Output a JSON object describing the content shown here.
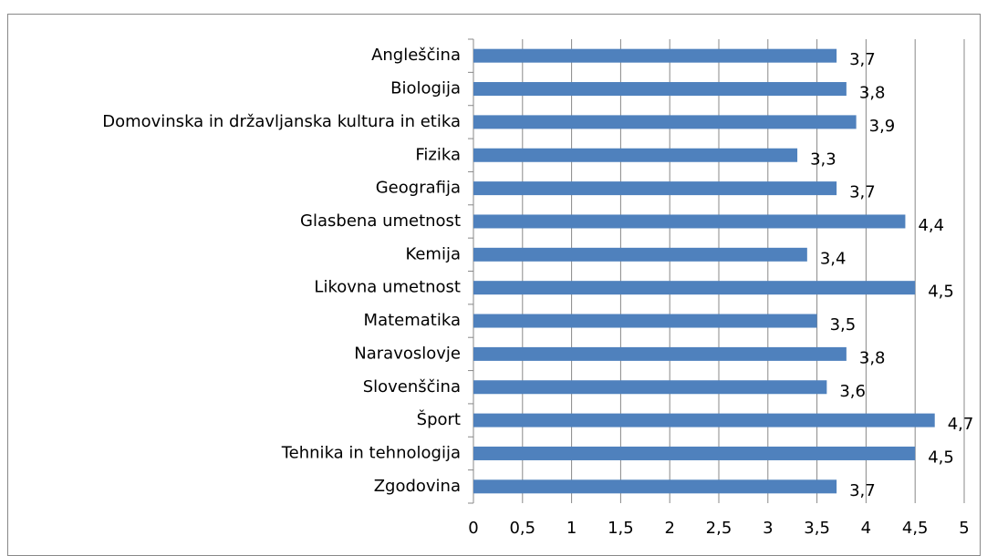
{
  "chart_data": {
    "type": "bar",
    "orientation": "horizontal",
    "categories": [
      "Angleščina",
      "Biologija",
      "Domovinska in državljanska kultura in etika",
      "Fizika",
      "Geografija",
      "Glasbena umetnost",
      "Kemija",
      "Likovna umetnost",
      "Matematika",
      "Naravoslovje",
      "Slovenščina",
      "Šport",
      "Tehnika in tehnologija",
      "Zgodovina"
    ],
    "values": [
      3.7,
      3.8,
      3.9,
      3.3,
      3.7,
      4.4,
      3.4,
      4.5,
      3.5,
      3.8,
      3.6,
      4.7,
      4.5,
      3.7
    ],
    "value_labels": [
      "3,7",
      "3,8",
      "3,9",
      "3,3",
      "3,7",
      "4,4",
      "3,4",
      "4,5",
      "3,5",
      "3,8",
      "3,6",
      "4,7",
      "4,5",
      "3,7"
    ],
    "color": "#4f81bd",
    "xlim": [
      0,
      5
    ],
    "xticks": [
      0,
      {
        "value": 0.5,
        "label": "0,5"
      },
      1,
      {
        "value": 1.5,
        "label": "1,5"
      },
      2,
      {
        "value": 2.5,
        "label": "2,5"
      },
      3,
      {
        "value": 3.5,
        "label": "3,5"
      },
      4,
      {
        "value": 4.5,
        "label": "4,5"
      },
      5
    ],
    "grid": true
  }
}
